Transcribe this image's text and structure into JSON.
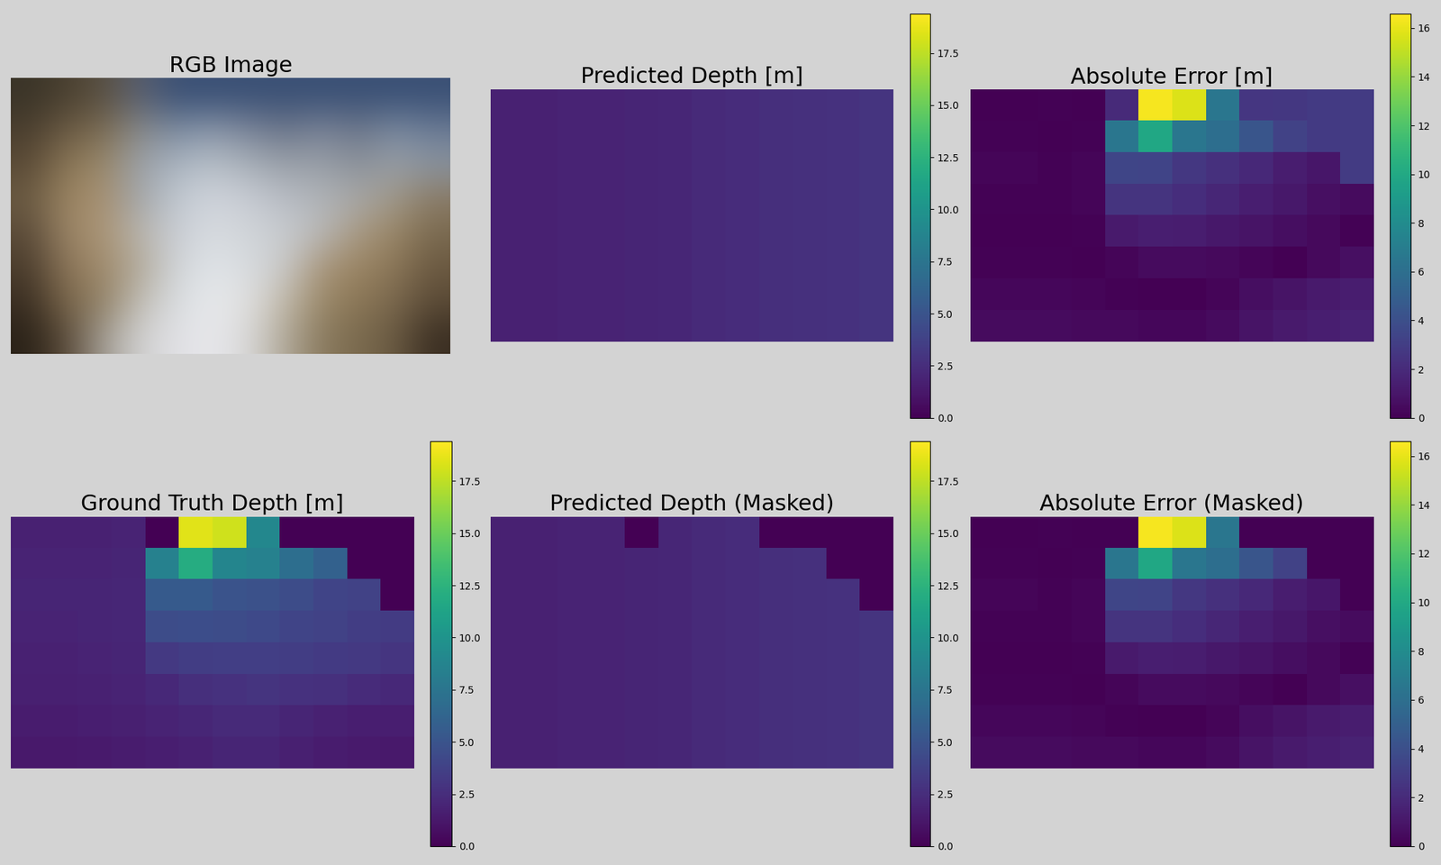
{
  "chart_data": [
    {
      "type": "image",
      "title": "RGB Image",
      "cells": [
        [
          "#3a3428",
          "#4a4030",
          "#5a5040",
          "#5a6070",
          "#3a5075",
          "#3a5075",
          "#3a5075",
          "#3a5075",
          "#3a5075",
          "#3a5075",
          "#3a5075",
          "#3a5075"
        ],
        [
          "#4a3e2e",
          "#6a5a44",
          "#7a6a50",
          "#8a8a88",
          "#7a8aa0",
          "#8a96a8",
          "#7a8498",
          "#6a7488",
          "#7a8498",
          "#6a7488",
          "#7a8aa0",
          "#6a7a94"
        ],
        [
          "#5a4a36",
          "#8a7656",
          "#9a8868",
          "#9aa0a8",
          "#aab4c0",
          "#b8c0c8",
          "#a8b0b8",
          "#9aa0a8",
          "#9aa0a8",
          "#8a9098",
          "#9aa0a8",
          "#8a94a0"
        ],
        [
          "#6a5a42",
          "#9a8462",
          "#a89070",
          "#a0a4a8",
          "#c0c8d0",
          "#d0d4dc",
          "#c8ccd4",
          "#b8bcc4",
          "#b0b4b8",
          "#a8a8a8",
          "#a09888",
          "#8a7a64"
        ],
        [
          "#5a4a38",
          "#9a8466",
          "#aa9474",
          "#b8b4ac",
          "#c8ccd4",
          "#d8dce0",
          "#d0d4d8",
          "#c8ccd0",
          "#b8b8b8",
          "#a89880",
          "#9a8666",
          "#7a6a50"
        ],
        [
          "#4a3c2c",
          "#8a7458",
          "#a08a6a",
          "#b0a898",
          "#d0d4d8",
          "#e0e4e8",
          "#d8dce0",
          "#c8c8c8",
          "#a89478",
          "#9a8462",
          "#8a7658",
          "#6a5840"
        ],
        [
          "#3a2e22",
          "#7a664a",
          "#908064",
          "#c0bcb4",
          "#d8dce0",
          "#e8eaec",
          "#e0e0e0",
          "#c0b8a8",
          "#9a8868",
          "#8a7656",
          "#7a684e",
          "#5a4a36"
        ],
        [
          "#2a2218",
          "#5a4a38",
          "#a09a90",
          "#d0d0d0",
          "#e0e0e4",
          "#e8e8ec",
          "#d8d8d8",
          "#b0a898",
          "#8a7a5e",
          "#7a6a4e",
          "#6a5a42",
          "#3a2e22"
        ]
      ],
      "tick_labels": false
    },
    {
      "type": "heatmap",
      "title": "Predicted Depth [m]",
      "cells": [
        [
          1.8,
          1.8,
          1.9,
          1.9,
          2.0,
          2.1,
          2.3,
          2.5,
          2.6,
          2.7,
          2.8,
          2.9
        ],
        [
          1.8,
          1.8,
          1.9,
          1.9,
          2.0,
          2.1,
          2.3,
          2.5,
          2.6,
          2.7,
          2.8,
          2.9
        ],
        [
          1.8,
          1.8,
          1.9,
          1.9,
          2.0,
          2.1,
          2.3,
          2.5,
          2.6,
          2.7,
          2.8,
          2.9
        ],
        [
          1.8,
          1.8,
          1.9,
          1.9,
          2.0,
          2.1,
          2.3,
          2.5,
          2.6,
          2.7,
          2.8,
          2.9
        ],
        [
          1.8,
          1.8,
          1.9,
          1.9,
          2.0,
          2.1,
          2.3,
          2.5,
          2.6,
          2.7,
          2.8,
          2.9
        ],
        [
          1.8,
          1.8,
          1.9,
          1.9,
          2.0,
          2.1,
          2.3,
          2.5,
          2.6,
          2.7,
          2.8,
          2.9
        ],
        [
          1.8,
          1.8,
          1.9,
          1.9,
          2.0,
          2.1,
          2.3,
          2.5,
          2.6,
          2.7,
          2.8,
          2.9
        ],
        [
          1.8,
          1.8,
          1.9,
          1.9,
          2.0,
          2.1,
          2.3,
          2.5,
          2.6,
          2.7,
          2.8,
          2.9
        ]
      ],
      "colorbar_range": [
        0,
        19.4
      ],
      "colorbar_ticks": [
        0.0,
        2.5,
        5.0,
        7.5,
        10.0,
        12.5,
        15.0,
        17.5
      ],
      "tick_labels": false
    },
    {
      "type": "heatmap",
      "title": "Absolute Error [m]",
      "cells": [
        [
          0,
          0,
          0.1,
          0,
          2.0,
          16.4,
          15.7,
          6.5,
          2.6,
          2.7,
          2.8,
          2.9
        ],
        [
          0.1,
          0.1,
          0,
          0.1,
          6.5,
          9.9,
          6.5,
          6.0,
          4.4,
          3.3,
          2.8,
          2.9
        ],
        [
          0.2,
          0.2,
          0.1,
          0.2,
          3.5,
          3.4,
          2.7,
          2.3,
          1.9,
          1.3,
          1.0,
          2.9
        ],
        [
          0.1,
          0.1,
          0.1,
          0.2,
          2.5,
          2.5,
          2.2,
          1.8,
          1.4,
          1.1,
          0.7,
          0.5
        ],
        [
          0,
          0,
          0,
          0.1,
          1.2,
          1.4,
          1.3,
          1.1,
          0.9,
          0.6,
          0.4,
          0.1
        ],
        [
          0.1,
          0.1,
          0.1,
          0,
          0.2,
          0.5,
          0.5,
          0.4,
          0.2,
          0,
          0.4,
          0.7
        ],
        [
          0.3,
          0.3,
          0.3,
          0.2,
          0.1,
          0,
          0,
          0.2,
          0.6,
          0.9,
          1.2,
          1.3
        ],
        [
          0.5,
          0.5,
          0.5,
          0.4,
          0.4,
          0.3,
          0.3,
          0.5,
          0.9,
          1.2,
          1.4,
          1.6
        ]
      ],
      "colorbar_range": [
        0,
        16.6
      ],
      "colorbar_ticks": [
        0,
        2,
        4,
        6,
        8,
        10,
        12,
        14,
        16
      ],
      "tick_labels": false
    },
    {
      "type": "heatmap",
      "title": "Ground Truth Depth [m]",
      "cells": [
        [
          1.8,
          1.8,
          1.8,
          1.9,
          0,
          18.5,
          18.0,
          9.0,
          0,
          0,
          0,
          0
        ],
        [
          1.9,
          1.9,
          1.9,
          2.0,
          8.5,
          12.0,
          8.8,
          8.5,
          7.0,
          6.0,
          0,
          0
        ],
        [
          2.0,
          2.0,
          2.0,
          2.1,
          5.5,
          5.5,
          5.0,
          4.8,
          4.5,
          4.0,
          3.8,
          0
        ],
        [
          1.9,
          1.9,
          2.0,
          2.1,
          4.5,
          4.6,
          4.5,
          4.3,
          4.0,
          3.8,
          3.5,
          3.4
        ],
        [
          1.8,
          1.8,
          1.9,
          2.0,
          3.2,
          3.5,
          3.6,
          3.6,
          3.5,
          3.3,
          3.2,
          3.0
        ],
        [
          1.7,
          1.7,
          1.8,
          1.9,
          2.2,
          2.6,
          2.8,
          2.9,
          2.8,
          2.7,
          2.4,
          2.2
        ],
        [
          1.5,
          1.5,
          1.6,
          1.7,
          1.9,
          2.1,
          2.3,
          2.3,
          2.0,
          1.8,
          1.6,
          1.6
        ],
        [
          1.3,
          1.3,
          1.4,
          1.5,
          1.6,
          1.8,
          2.0,
          2.0,
          1.7,
          1.5,
          1.4,
          1.3
        ]
      ],
      "colorbar_range": [
        0,
        19.4
      ],
      "colorbar_ticks": [
        0.0,
        2.5,
        5.0,
        7.5,
        10.0,
        12.5,
        15.0,
        17.5
      ],
      "tick_labels": false
    },
    {
      "type": "heatmap",
      "title": "Predicted Depth (Masked)",
      "cells": [
        [
          1.8,
          1.8,
          1.9,
          1.9,
          0,
          2.1,
          2.3,
          2.5,
          0,
          0,
          0,
          0
        ],
        [
          1.8,
          1.8,
          1.9,
          1.9,
          2.0,
          2.1,
          2.3,
          2.5,
          2.6,
          2.7,
          0,
          0
        ],
        [
          1.8,
          1.8,
          1.9,
          1.9,
          2.0,
          2.1,
          2.3,
          2.5,
          2.6,
          2.7,
          2.8,
          0
        ],
        [
          1.8,
          1.8,
          1.9,
          1.9,
          2.0,
          2.1,
          2.3,
          2.5,
          2.6,
          2.7,
          2.8,
          2.9
        ],
        [
          1.8,
          1.8,
          1.9,
          1.9,
          2.0,
          2.1,
          2.3,
          2.5,
          2.6,
          2.7,
          2.8,
          2.9
        ],
        [
          1.8,
          1.8,
          1.9,
          1.9,
          2.0,
          2.1,
          2.3,
          2.5,
          2.6,
          2.7,
          2.8,
          2.9
        ],
        [
          1.8,
          1.8,
          1.9,
          1.9,
          2.0,
          2.1,
          2.3,
          2.5,
          2.6,
          2.7,
          2.8,
          2.9
        ],
        [
          1.8,
          1.8,
          1.9,
          1.9,
          2.0,
          2.1,
          2.3,
          2.5,
          2.6,
          2.7,
          2.8,
          2.9
        ]
      ],
      "colorbar_range": [
        0,
        19.4
      ],
      "colorbar_ticks": [
        0.0,
        2.5,
        5.0,
        7.5,
        10.0,
        12.5,
        15.0,
        17.5
      ],
      "tick_labels": false
    },
    {
      "type": "heatmap",
      "title": "Absolute Error (Masked)",
      "cells": [
        [
          0,
          0,
          0.1,
          0,
          0,
          16.4,
          15.7,
          6.5,
          0,
          0,
          0,
          0
        ],
        [
          0.1,
          0.1,
          0,
          0.1,
          6.5,
          9.9,
          6.5,
          6.0,
          4.4,
          3.3,
          0,
          0
        ],
        [
          0.2,
          0.2,
          0.1,
          0.2,
          3.5,
          3.4,
          2.7,
          2.3,
          1.9,
          1.3,
          1.0,
          0
        ],
        [
          0.1,
          0.1,
          0.1,
          0.2,
          2.5,
          2.5,
          2.2,
          1.8,
          1.4,
          1.1,
          0.7,
          0.5
        ],
        [
          0,
          0,
          0,
          0.1,
          1.2,
          1.4,
          1.3,
          1.1,
          0.9,
          0.6,
          0.4,
          0.1
        ],
        [
          0.1,
          0.1,
          0.1,
          0,
          0.2,
          0.5,
          0.5,
          0.4,
          0.2,
          0,
          0.4,
          0.7
        ],
        [
          0.3,
          0.3,
          0.3,
          0.2,
          0.1,
          0,
          0,
          0.2,
          0.6,
          0.9,
          1.2,
          1.3
        ],
        [
          0.5,
          0.5,
          0.5,
          0.4,
          0.4,
          0.3,
          0.3,
          0.5,
          0.9,
          1.2,
          1.4,
          1.6
        ]
      ],
      "colorbar_range": [
        0,
        16.6
      ],
      "colorbar_ticks": [
        0,
        2,
        4,
        6,
        8,
        10,
        12,
        14,
        16
      ],
      "tick_labels": false
    }
  ]
}
